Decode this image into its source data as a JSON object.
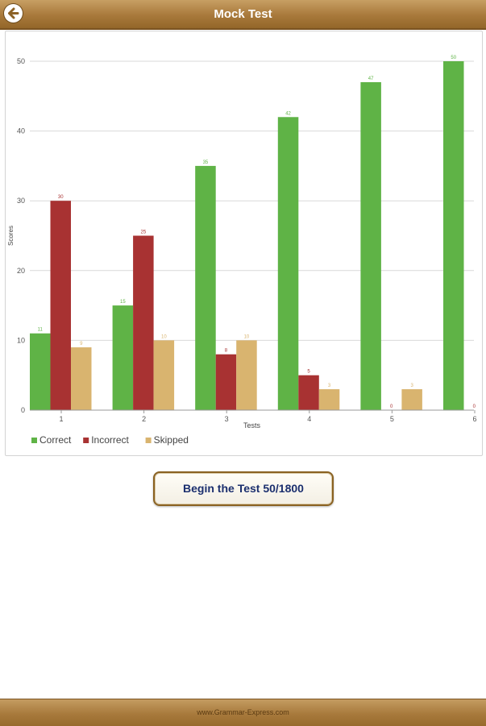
{
  "header": {
    "title": "Mock Test",
    "back_icon": "back-arrow-icon"
  },
  "chart_data": {
    "type": "bar",
    "categories": [
      "1",
      "2",
      "3",
      "4",
      "5",
      "6"
    ],
    "series": [
      {
        "name": "Correct",
        "color": "#5fb346",
        "values": [
          11,
          15,
          35,
          42,
          47,
          50
        ]
      },
      {
        "name": "Incorrect",
        "color": "#a83232",
        "values": [
          30,
          25,
          8,
          5,
          0,
          0
        ]
      },
      {
        "name": "Skipped",
        "color": "#d9b46f",
        "values": [
          9,
          10,
          10,
          3,
          3,
          null
        ]
      }
    ],
    "title": "",
    "xlabel": "Tests",
    "ylabel": "Scores",
    "ylim": [
      0,
      50
    ],
    "yticks": [
      0,
      10,
      20,
      30,
      40,
      50
    ],
    "grid": true,
    "legend_position": "bottom-left"
  },
  "begin_button": {
    "label": "Begin the Test 50/1800"
  },
  "footer": {
    "text": "www.Grammar-Express.com"
  }
}
